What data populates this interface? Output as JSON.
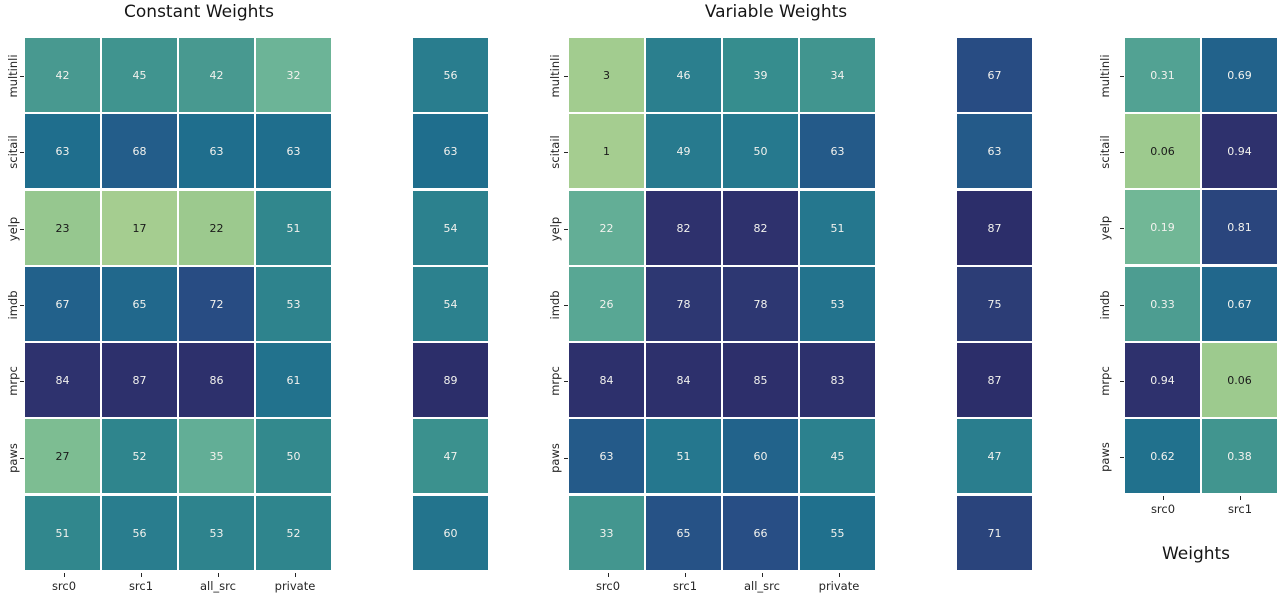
{
  "figure": {
    "background": "#ffffff",
    "titles": {
      "constant": "Constant Weights",
      "variable": "Variable Weights",
      "weights": "Weights"
    }
  },
  "colormap": {
    "name": "crest-like",
    "stops": [
      [
        0.0,
        "#a5cd90"
      ],
      [
        0.07,
        "#9cc98e"
      ],
      [
        0.14,
        "#7dbd92"
      ],
      [
        0.21,
        "#6cb497"
      ],
      [
        0.29,
        "#58a794"
      ],
      [
        0.35,
        "#479890"
      ],
      [
        0.42,
        "#3a918e"
      ],
      [
        0.47,
        "#31878d"
      ],
      [
        0.54,
        "#297d8e"
      ],
      [
        0.64,
        "#1f6e8d"
      ],
      [
        0.71,
        "#235d8a"
      ],
      [
        0.76,
        "#284d84"
      ],
      [
        0.86,
        "#2c3d76"
      ],
      [
        0.93,
        "#2e326e"
      ],
      [
        1.0,
        "#2c2e6a"
      ]
    ],
    "annot_dark": "#1a1a1a",
    "annot_light": "#f2f2ee",
    "luminance_threshold": 160
  },
  "chart_data": [
    {
      "id": "constant_main",
      "type": "heatmap",
      "title": "Constant Weights",
      "row_labels": [
        "multinli",
        "scitail",
        "yelp",
        "imdb",
        "mrpc",
        "paws",
        ""
      ],
      "col_labels": [
        "src0",
        "src1",
        "all_src",
        "private"
      ],
      "values": [
        [
          42,
          45,
          42,
          32
        ],
        [
          63,
          68,
          63,
          63
        ],
        [
          23,
          17,
          22,
          51
        ],
        [
          67,
          65,
          72,
          53
        ],
        [
          84,
          87,
          86,
          61
        ],
        [
          27,
          52,
          35,
          50
        ],
        [
          51,
          56,
          53,
          52
        ]
      ],
      "vmin": 17,
      "vmax": 89,
      "annot_format": "int",
      "grid": true,
      "legend": "none"
    },
    {
      "id": "constant_extra_col",
      "type": "heatmap",
      "title": "",
      "row_labels": [],
      "col_labels": [],
      "values": [
        [
          56
        ],
        [
          63
        ],
        [
          54
        ],
        [
          54
        ],
        [
          89
        ],
        [
          47
        ],
        [
          60
        ]
      ],
      "vmin": 17,
      "vmax": 89,
      "annot_format": "int",
      "grid": true,
      "legend": "none"
    },
    {
      "id": "variable_main",
      "type": "heatmap",
      "title": "Variable Weights",
      "row_labels": [
        "multinli",
        "scitail",
        "yelp",
        "imdb",
        "mrpc",
        "paws",
        ""
      ],
      "col_labels": [
        "src0",
        "src1",
        "all_src",
        "private"
      ],
      "values": [
        [
          3,
          46,
          39,
          34
        ],
        [
          1,
          49,
          50,
          63
        ],
        [
          22,
          82,
          82,
          51
        ],
        [
          26,
          78,
          78,
          53
        ],
        [
          84,
          84,
          85,
          83
        ],
        [
          63,
          51,
          60,
          45
        ],
        [
          33,
          65,
          66,
          55
        ]
      ],
      "vmin": 1,
      "vmax": 87,
      "annot_format": "int",
      "grid": true,
      "legend": "none"
    },
    {
      "id": "variable_extra_col",
      "type": "heatmap",
      "title": "",
      "row_labels": [],
      "col_labels": [],
      "values": [
        [
          67
        ],
        [
          63
        ],
        [
          87
        ],
        [
          75
        ],
        [
          87
        ],
        [
          47
        ],
        [
          71
        ]
      ],
      "vmin": 1,
      "vmax": 87,
      "annot_format": "int",
      "grid": true,
      "legend": "none"
    },
    {
      "id": "weights",
      "type": "heatmap",
      "title": "Weights",
      "row_labels": [
        "multinli",
        "scitail",
        "yelp",
        "imdb",
        "mrpc",
        "paws"
      ],
      "col_labels": [
        "src0",
        "src1"
      ],
      "values": [
        [
          0.31,
          0.69
        ],
        [
          0.06,
          0.94
        ],
        [
          0.19,
          0.81
        ],
        [
          0.33,
          0.67
        ],
        [
          0.94,
          0.06
        ],
        [
          0.62,
          0.38
        ]
      ],
      "vmin": 0,
      "vmax": 1,
      "annot_format": "2dp",
      "grid": true,
      "legend": "none"
    }
  ]
}
